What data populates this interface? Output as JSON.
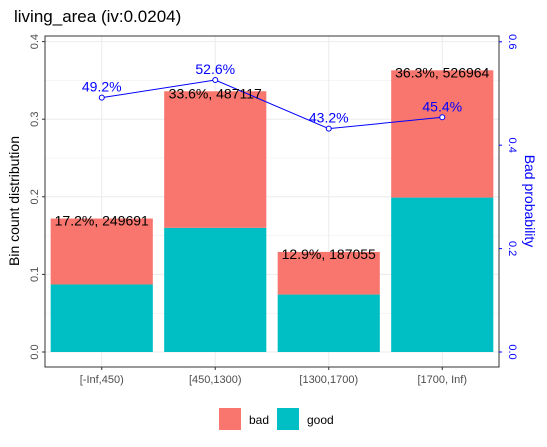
{
  "chart_data": {
    "type": "bar",
    "title": "living_area  (iv:0.0204)",
    "categories": [
      "[-Inf,450)",
      "[450,1300)",
      "[1300,1700)",
      "[1700, Inf)"
    ],
    "series": [
      {
        "name": "good",
        "values": [
          0.087,
          0.16,
          0.074,
          0.199
        ]
      },
      {
        "name": "bad",
        "values": [
          0.085,
          0.176,
          0.055,
          0.164
        ]
      }
    ],
    "bar_labels": [
      "17.2%, 249691",
      "33.6%, 487117",
      "12.9%, 187055",
      "36.3%, 526964"
    ],
    "bad_probability": {
      "values": [
        0.492,
        0.526,
        0.432,
        0.454
      ],
      "labels": [
        "49.2%",
        "52.6%",
        "43.2%",
        "45.4%"
      ]
    },
    "ylabel": "Bin count distribution",
    "ylabel_right": "Bad probability",
    "ylim": [
      0,
      0.42
    ],
    "yticks": [
      "0.0",
      "0.1",
      "0.2",
      "0.3",
      "0.4"
    ],
    "ylim_right": [
      0,
      0.63
    ],
    "yticks_right": [
      "0.0",
      "0.2",
      "0.4",
      "0.6"
    ],
    "grid": true,
    "legend_position": "bottom",
    "colors": {
      "bad": "#F8766D",
      "good": "#00BFC4",
      "line": "#0000FF"
    }
  }
}
